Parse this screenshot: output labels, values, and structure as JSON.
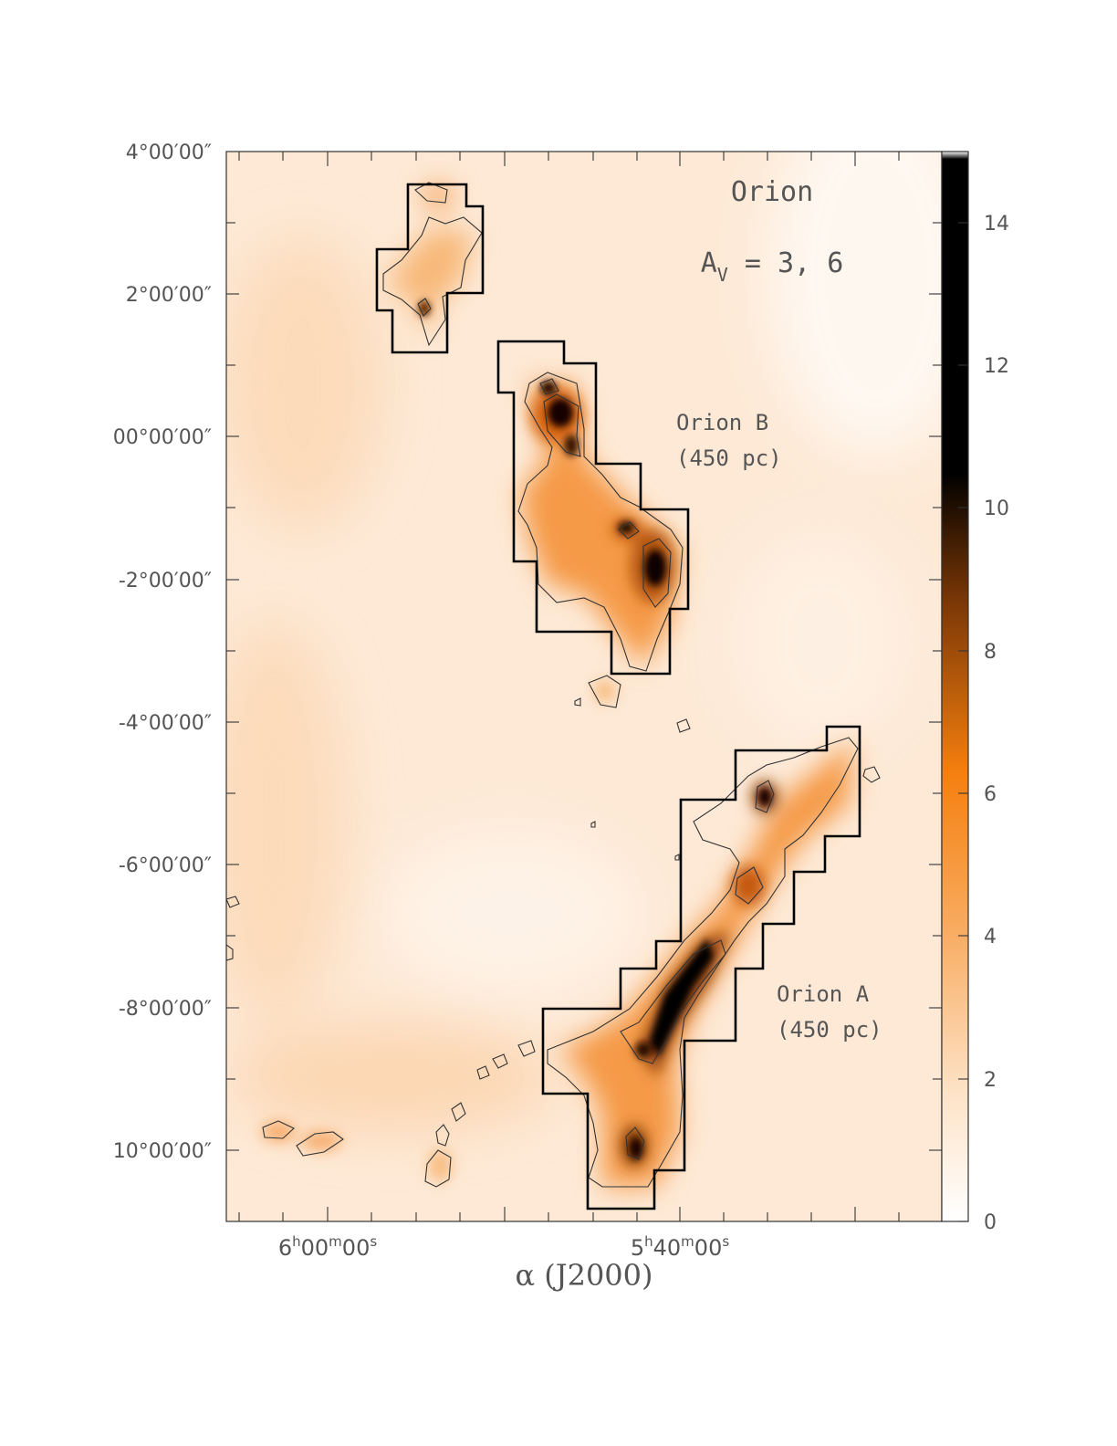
{
  "chart_data": {
    "type": "heatmap",
    "title": "Orion",
    "subtitle": "A_V = 3, 6",
    "subtitle_parts": {
      "main": "A",
      "sub": "V",
      "rest": " = 3, 6"
    },
    "xlabel": "α (J2000)",
    "x_ticks": [
      {
        "main": "6",
        "h": "h",
        "mm": "00",
        "m": "m",
        "ss": "00",
        "s": "s"
      },
      {
        "main": "5",
        "h": "h",
        "mm": "40",
        "m": "m",
        "ss": "00",
        "s": "s"
      }
    ],
    "y_tick_labels": [
      "4°00′00″",
      "2°00′00″",
      "00°00′00″",
      "-2°00′00″",
      "-4°00′00″",
      "-6°00′00″",
      "-8°00′00″",
      "10°00′00″"
    ],
    "y_range_deg": [
      -11,
      4
    ],
    "colorbar": {
      "tick_labels": [
        "0",
        "2",
        "4",
        "6",
        "8",
        "10",
        "12",
        "14"
      ],
      "range": [
        0,
        15
      ],
      "colormap": [
        "#ffffff",
        "#fde3c7",
        "#f8a95c",
        "#f57f0f",
        "#7a3706",
        "#000000"
      ]
    },
    "contour_levels": [
      3,
      6
    ],
    "annotations": [
      {
        "id": "orion-b",
        "lines": [
          "Orion B",
          "(450 pc)"
        ]
      },
      {
        "id": "orion-a",
        "lines": [
          "Orion A",
          "(450 pc)"
        ]
      }
    ]
  }
}
